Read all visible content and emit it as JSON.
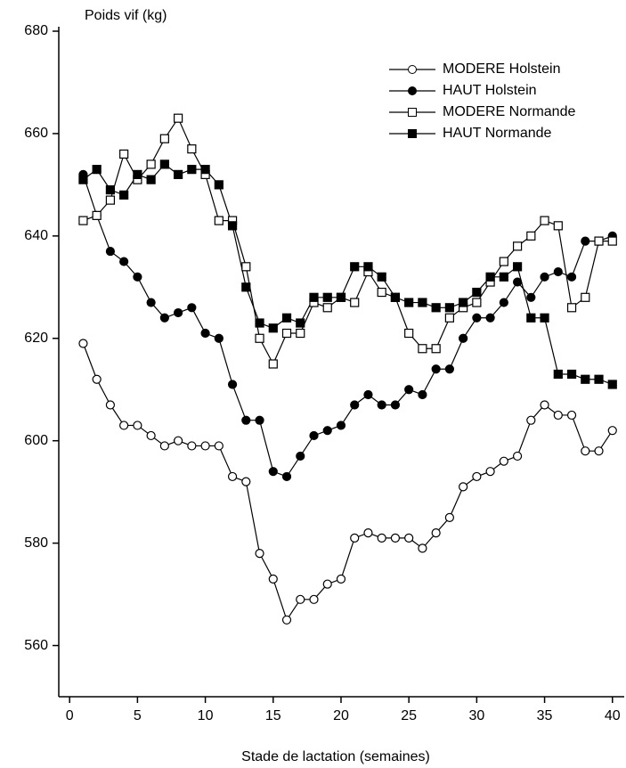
{
  "chart_data": {
    "type": "line",
    "y_label": "Poids vif (kg)",
    "x_label": "Stade de lactation (semaines)",
    "x": [
      1,
      2,
      3,
      4,
      5,
      6,
      7,
      8,
      9,
      10,
      11,
      12,
      13,
      14,
      15,
      16,
      17,
      18,
      19,
      20,
      21,
      22,
      23,
      24,
      25,
      26,
      27,
      28,
      29,
      30,
      31,
      32,
      33,
      34,
      35,
      36,
      37,
      38,
      39,
      40
    ],
    "series": [
      {
        "name": "MODERE Holstein",
        "color": "#000000",
        "marker": "circle",
        "filled": false,
        "values": [
          619,
          612,
          607,
          603,
          603,
          601,
          599,
          600,
          599,
          599,
          599,
          593,
          592,
          578,
          573,
          565,
          569,
          569,
          572,
          573,
          581,
          582,
          581,
          581,
          581,
          579,
          582,
          585,
          591,
          593,
          594,
          596,
          597,
          604,
          607,
          605,
          605,
          598,
          598,
          602
        ]
      },
      {
        "name": "HAUT Holstein",
        "color": "#000000",
        "marker": "circle",
        "filled": true,
        "values": [
          652,
          644,
          637,
          635,
          632,
          627,
          624,
          625,
          626,
          621,
          620,
          611,
          604,
          604,
          594,
          593,
          597,
          601,
          602,
          603,
          607,
          609,
          607,
          607,
          610,
          609,
          614,
          614,
          620,
          624,
          624,
          627,
          631,
          628,
          632,
          633,
          632,
          639,
          639,
          640
        ]
      },
      {
        "name": "MODERE Normande",
        "color": "#000000",
        "marker": "square",
        "filled": false,
        "values": [
          643,
          644,
          647,
          656,
          651,
          654,
          659,
          663,
          657,
          652,
          643,
          643,
          634,
          620,
          615,
          621,
          621,
          627,
          626,
          628,
          627,
          633,
          629,
          628,
          621,
          618,
          618,
          624,
          626,
          627,
          631,
          635,
          638,
          640,
          643,
          642,
          626,
          628,
          639,
          639
        ]
      },
      {
        "name": "HAUT Normande",
        "color": "#000000",
        "marker": "square",
        "filled": true,
        "values": [
          651,
          653,
          649,
          648,
          652,
          651,
          654,
          652,
          653,
          653,
          650,
          642,
          630,
          623,
          622,
          624,
          623,
          628,
          628,
          628,
          634,
          634,
          632,
          628,
          627,
          627,
          626,
          626,
          627,
          629,
          632,
          632,
          634,
          624,
          624,
          613,
          613,
          612,
          612,
          611
        ]
      }
    ],
    "xlim": [
      -0.8,
      41
    ],
    "xticks": [
      0,
      5,
      10,
      15,
      20,
      25,
      30,
      35,
      40
    ],
    "ylim": [
      550,
      680
    ],
    "yticks": [
      560,
      580,
      600,
      620,
      640,
      660,
      680
    ],
    "legend": "top-right",
    "grid": false
  }
}
